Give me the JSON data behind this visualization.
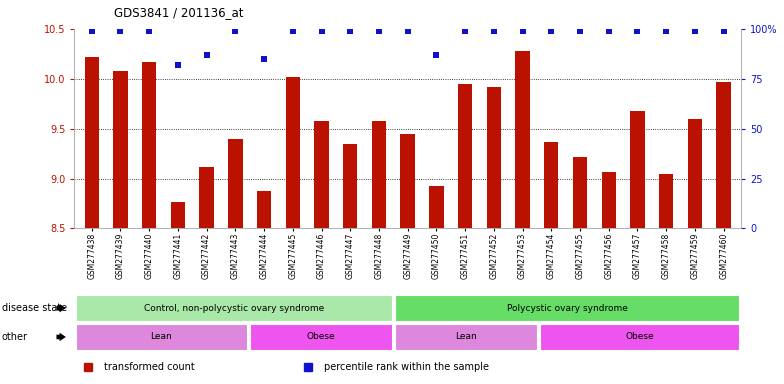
{
  "title": "GDS3841 / 201136_at",
  "samples": [
    "GSM277438",
    "GSM277439",
    "GSM277440",
    "GSM277441",
    "GSM277442",
    "GSM277443",
    "GSM277444",
    "GSM277445",
    "GSM277446",
    "GSM277447",
    "GSM277448",
    "GSM277449",
    "GSM277450",
    "GSM277451",
    "GSM277452",
    "GSM277453",
    "GSM277454",
    "GSM277455",
    "GSM277456",
    "GSM277457",
    "GSM277458",
    "GSM277459",
    "GSM277460"
  ],
  "bar_values": [
    10.22,
    10.08,
    10.17,
    8.77,
    9.12,
    9.4,
    8.88,
    10.02,
    9.58,
    9.35,
    9.58,
    9.45,
    8.93,
    9.95,
    9.92,
    10.28,
    9.37,
    9.22,
    9.07,
    9.68,
    9.05,
    9.6,
    9.97
  ],
  "percentile_values": [
    99,
    99,
    99,
    82,
    87,
    99,
    85,
    99,
    99,
    99,
    99,
    99,
    87,
    99,
    99,
    99,
    99,
    99,
    99,
    99,
    99,
    99,
    99
  ],
  "bar_color": "#bb1100",
  "dot_color": "#1111cc",
  "ylim_left": [
    8.5,
    10.5
  ],
  "ylim_right": [
    0,
    100
  ],
  "yticks_left": [
    8.5,
    9.0,
    9.5,
    10.0,
    10.5
  ],
  "yticks_right": [
    0,
    25,
    50,
    75,
    100
  ],
  "ytick_labels_right": [
    "0",
    "25",
    "50",
    "75",
    "100%"
  ],
  "grid_values": [
    9.0,
    9.5,
    10.0
  ],
  "disease_state_groups": [
    {
      "label": "Control, non-polycystic ovary syndrome",
      "start": 0,
      "end": 11,
      "color": "#aae8aa"
    },
    {
      "label": "Polycystic ovary syndrome",
      "start": 11,
      "end": 23,
      "color": "#66dd66"
    }
  ],
  "other_groups": [
    {
      "label": "Lean",
      "start": 0,
      "end": 6,
      "color": "#dd88dd"
    },
    {
      "label": "Obese",
      "start": 6,
      "end": 11,
      "color": "#ee55ee"
    },
    {
      "label": "Lean",
      "start": 11,
      "end": 16,
      "color": "#dd88dd"
    },
    {
      "label": "Obese",
      "start": 16,
      "end": 23,
      "color": "#ee55ee"
    }
  ],
  "legend_items": [
    {
      "label": "transformed count",
      "color": "#bb1100"
    },
    {
      "label": "percentile rank within the sample",
      "color": "#1111cc"
    }
  ],
  "background_color": "#ffffff",
  "label_disease_state": "disease state",
  "label_other": "other"
}
